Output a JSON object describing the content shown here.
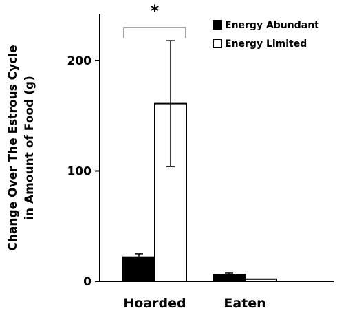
{
  "chart_data": {
    "type": "bar",
    "title": "",
    "xlabel": "",
    "ylabel": "Change Over The Estrous Cycle in Amount of Food (g)",
    "ylabel_lines": [
      "Change Over The Estrous Cycle",
      "in Amount of Food (g)"
    ],
    "categories": [
      "Hoarded",
      "Eaten"
    ],
    "ylim": [
      0,
      240
    ],
    "yticks": [
      0,
      100,
      200
    ],
    "grid": false,
    "legend_position": "top-right",
    "series": [
      {
        "name": "Energy Abundant",
        "values": [
          22,
          6
        ],
        "errors": [
          3,
          1.5
        ],
        "color": "#000000",
        "fill": "solid"
      },
      {
        "name": "Energy Limited",
        "values": [
          161,
          2
        ],
        "errors": [
          57,
          0
        ],
        "color": "#000000",
        "fill": "open"
      }
    ],
    "annotations": [
      {
        "text": "*",
        "type": "significance-bracket",
        "category": "Hoarded"
      }
    ]
  }
}
